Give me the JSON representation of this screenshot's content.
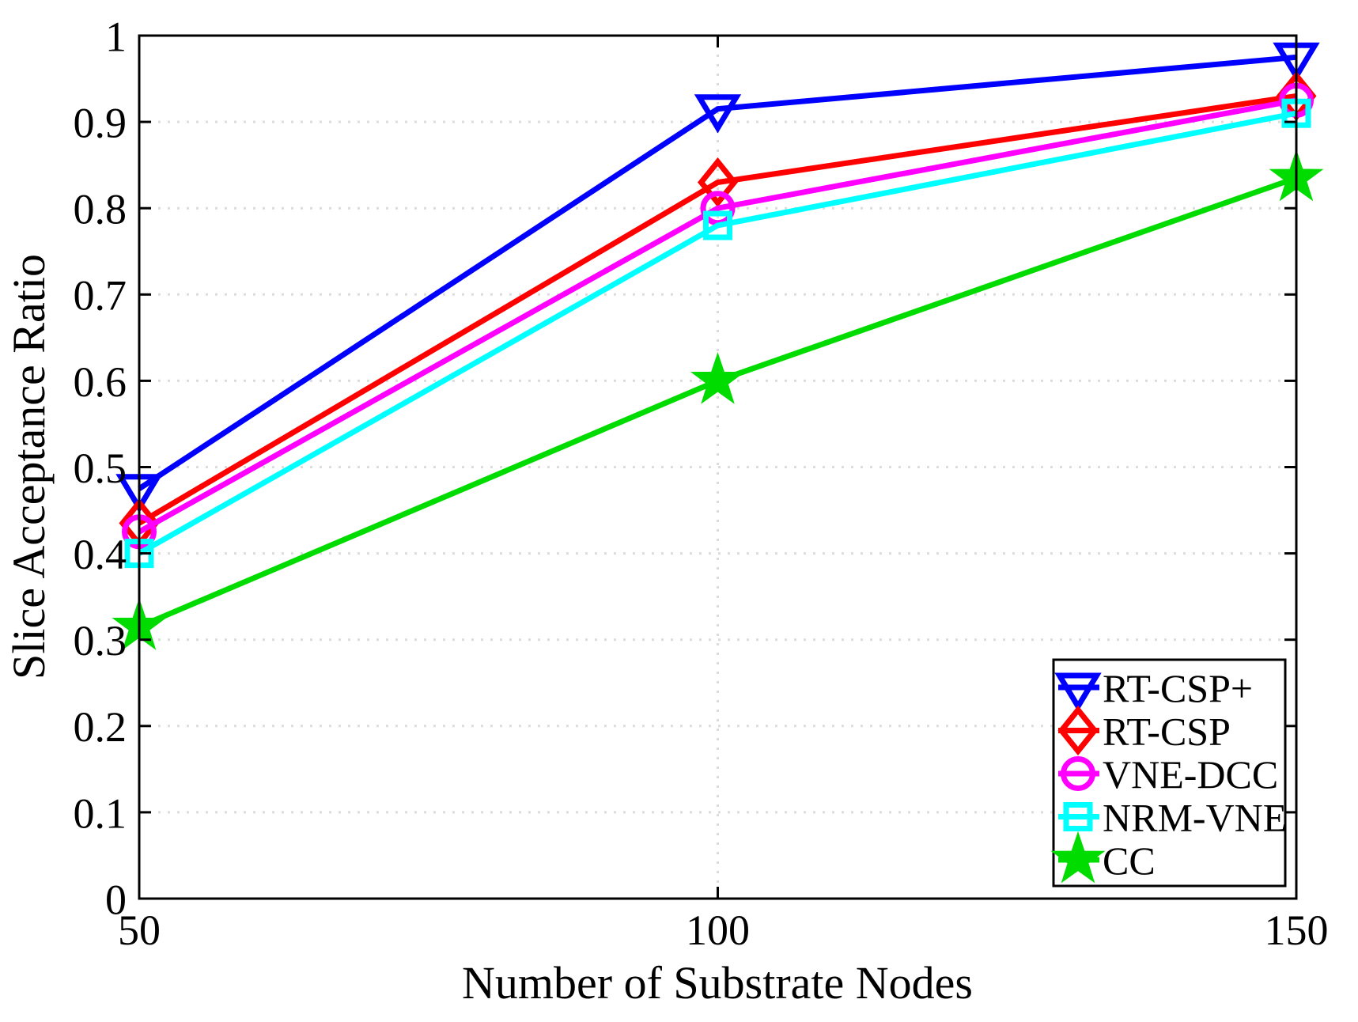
{
  "chart_data": {
    "type": "line",
    "title": "",
    "xlabel": "Number of Substrate Nodes",
    "ylabel": "Slice Acceptance Ratio",
    "x": [
      50,
      100,
      150
    ],
    "xlim": [
      50,
      150
    ],
    "ylim": [
      0,
      1
    ],
    "xticks": {
      "values": [
        50,
        100,
        150
      ],
      "labels": [
        "50",
        "100",
        "150"
      ]
    },
    "yticks": {
      "values": [
        0,
        0.1,
        0.2,
        0.3,
        0.4,
        0.5,
        0.6,
        0.7,
        0.8,
        0.9,
        1
      ],
      "labels": [
        "0",
        "0.1",
        "0.2",
        "0.3",
        "0.4",
        "0.5",
        "0.6",
        "0.7",
        "0.8",
        "0.9",
        "1"
      ]
    },
    "grid": {
      "style": "dotted",
      "horizontal_at": [
        0.1,
        0.2,
        0.3,
        0.4,
        0.5,
        0.6,
        0.7,
        0.8,
        0.9
      ],
      "vertical_at": [
        100
      ]
    },
    "legend": {
      "position": "lower-right",
      "entries": [
        "RT-CSP+",
        "RT-CSP",
        "VNE-DCC",
        "NRM-VNE",
        "CC"
      ]
    },
    "series": [
      {
        "name": "RT-CSP+",
        "color": "#0000FF",
        "marker": "triangle-down",
        "values": [
          0.475,
          0.915,
          0.975
        ]
      },
      {
        "name": "RT-CSP",
        "color": "#FF0000",
        "marker": "diamond",
        "values": [
          0.435,
          0.83,
          0.93
        ]
      },
      {
        "name": "VNE-DCC",
        "color": "#FF00FF",
        "marker": "circle",
        "values": [
          0.425,
          0.8,
          0.925
        ]
      },
      {
        "name": "NRM-VNE",
        "color": "#00FFFF",
        "marker": "square",
        "values": [
          0.4,
          0.78,
          0.91
        ]
      },
      {
        "name": "CC",
        "color": "#00DC00",
        "marker": "star",
        "values": [
          0.315,
          0.6,
          0.835
        ]
      }
    ]
  },
  "style_colors": {
    "axis": "#000000",
    "grid": "#DCDCDC",
    "background": "#FFFFFF",
    "legend_background": "#FFFFFF",
    "legend_border": "#000000"
  }
}
